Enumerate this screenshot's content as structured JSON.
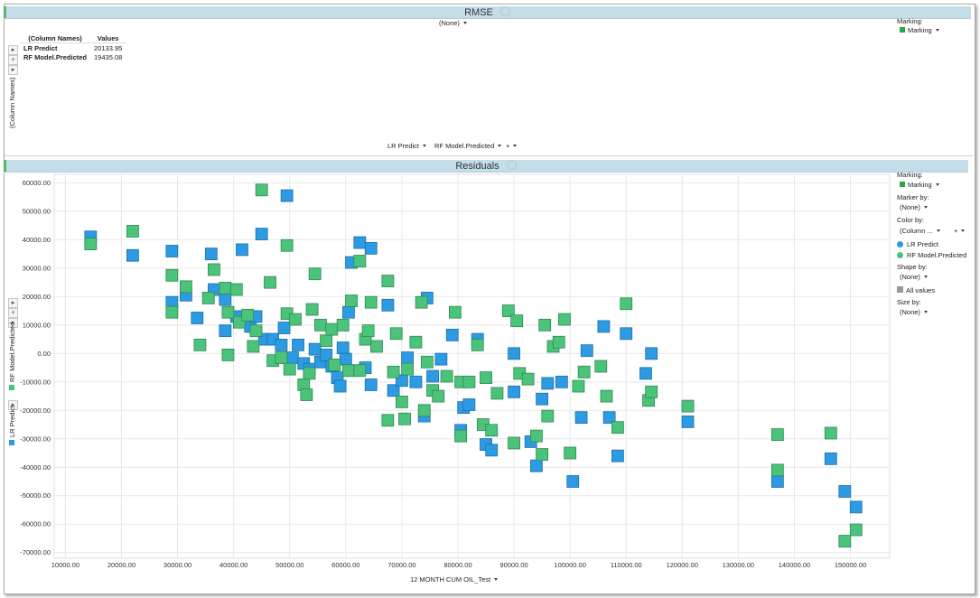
{
  "rmse_panel": {
    "title": "RMSE",
    "column_selector": "(None)",
    "marking_label": "Marking:",
    "marking_value": "Marking",
    "table": {
      "headers": [
        "(Column Names)",
        "Values"
      ],
      "rows": [
        {
          "name": "LR Predict",
          "value": "20133.95"
        },
        {
          "name": "RF Model.Predicted",
          "value": "19435.08"
        }
      ]
    },
    "row_axis_label": "(Column Names)",
    "bottom_selectors": [
      "LR Predict",
      "RF Model.Predicted"
    ]
  },
  "residuals_panel": {
    "title": "Residuals",
    "marking_label": "Marking:",
    "marking_value": "Marking",
    "marker_by_label": "Marker by:",
    "marker_by_value": "(None)",
    "color_by_label": "Color by:",
    "color_by_value": "(Column ...",
    "legend": [
      {
        "name": "LR Predict",
        "color": "#2d9be3"
      },
      {
        "name": "RF Model.Predicted",
        "color": "#4cc37a"
      }
    ],
    "shape_by_label": "Shape by:",
    "shape_by_value": "(None)",
    "shape_all_values": "All values",
    "size_by_label": "Size by:",
    "size_by_value": "(None)",
    "y_axis_series": [
      "LR Predict",
      "RF Model.Predicted"
    ],
    "x_axis_selector": "12 MONTH CUM OIL_Test"
  },
  "colors": {
    "title_bar": "#c4dde8",
    "marking_green": "#28a745",
    "lr_blue": "#2d9be3",
    "rf_green": "#4cc37a"
  },
  "chart_data": {
    "type": "scatter",
    "xlabel": "12 MONTH CUM OIL_Test",
    "ylabel": "",
    "xlim": [
      8000,
      157000
    ],
    "ylim": [
      -72000,
      63000
    ],
    "x_ticks": [
      "10000.00",
      "20000.00",
      "30000.00",
      "40000.00",
      "50000.00",
      "60000.00",
      "70000.00",
      "80000.00",
      "90000.00",
      "100000.00",
      "110000.00",
      "120000.00",
      "130000.00",
      "140000.00",
      "150000.00"
    ],
    "y_ticks": [
      "60000.00",
      "50000.00",
      "40000.00",
      "30000.00",
      "20000.00",
      "10000.00",
      "0.00",
      "-10000.00",
      "-20000.00",
      "-30000.00",
      "-40000.00",
      "-50000.00",
      "-60000.00",
      "-70000.00"
    ],
    "grid": true,
    "series": [
      {
        "name": "LR Predict",
        "color": "#2d9be3",
        "points": [
          [
            14500,
            41000
          ],
          [
            22000,
            34500
          ],
          [
            29000,
            36000
          ],
          [
            29000,
            18000
          ],
          [
            31500,
            20500
          ],
          [
            33500,
            12500
          ],
          [
            36000,
            35000
          ],
          [
            36500,
            22500
          ],
          [
            38500,
            19000
          ],
          [
            38500,
            8000
          ],
          [
            41500,
            36500
          ],
          [
            40500,
            13000
          ],
          [
            43000,
            9500
          ],
          [
            44000,
            13000
          ],
          [
            45000,
            42000
          ],
          [
            45500,
            5000
          ],
          [
            47000,
            5000
          ],
          [
            48500,
            3000
          ],
          [
            49000,
            9000
          ],
          [
            49500,
            55500
          ],
          [
            50500,
            -1500
          ],
          [
            51500,
            3000
          ],
          [
            52500,
            -3500
          ],
          [
            53500,
            -5500
          ],
          [
            54500,
            1500
          ],
          [
            55500,
            -3000
          ],
          [
            56500,
            -500
          ],
          [
            57500,
            -4500
          ],
          [
            58500,
            -8500
          ],
          [
            59000,
            -11500
          ],
          [
            59500,
            2000
          ],
          [
            60000,
            -2000
          ],
          [
            60500,
            14500
          ],
          [
            61000,
            32000
          ],
          [
            62500,
            39000
          ],
          [
            63500,
            -5000
          ],
          [
            64500,
            37000
          ],
          [
            64500,
            -11000
          ],
          [
            67500,
            17000
          ],
          [
            68500,
            -13000
          ],
          [
            70000,
            -9500
          ],
          [
            71000,
            -1500
          ],
          [
            72500,
            -10000
          ],
          [
            74000,
            -22000
          ],
          [
            74500,
            19500
          ],
          [
            75500,
            -8000
          ],
          [
            77000,
            -2000
          ],
          [
            79000,
            6500
          ],
          [
            80500,
            -27000
          ],
          [
            81000,
            -19000
          ],
          [
            82000,
            -18000
          ],
          [
            83500,
            5000
          ],
          [
            85000,
            -32000
          ],
          [
            86000,
            -34000
          ],
          [
            90000,
            0
          ],
          [
            90000,
            -13500
          ],
          [
            93000,
            -31000
          ],
          [
            94000,
            -39500
          ],
          [
            95000,
            -16000
          ],
          [
            96000,
            -10500
          ],
          [
            98500,
            -10000
          ],
          [
            100500,
            -45000
          ],
          [
            102000,
            -22500
          ],
          [
            103000,
            1000
          ],
          [
            106000,
            9500
          ],
          [
            107000,
            -22500
          ],
          [
            108500,
            -36000
          ],
          [
            110000,
            7000
          ],
          [
            113500,
            -7000
          ],
          [
            114500,
            0
          ],
          [
            121000,
            -24000
          ],
          [
            137000,
            -45000
          ],
          [
            146500,
            -37000
          ],
          [
            149000,
            -48500
          ],
          [
            151000,
            -54000
          ]
        ]
      },
      {
        "name": "RF Model.Predicted",
        "color": "#4cc37a",
        "points": [
          [
            14500,
            38500
          ],
          [
            22000,
            43000
          ],
          [
            29000,
            27500
          ],
          [
            29000,
            14500
          ],
          [
            31500,
            23500
          ],
          [
            34000,
            3000
          ],
          [
            35500,
            19500
          ],
          [
            36500,
            29500
          ],
          [
            38500,
            23000
          ],
          [
            39000,
            14500
          ],
          [
            39000,
            -500
          ],
          [
            40500,
            22500
          ],
          [
            41000,
            11000
          ],
          [
            42500,
            13500
          ],
          [
            43500,
            2500
          ],
          [
            44000,
            8000
          ],
          [
            45000,
            57500
          ],
          [
            46500,
            25000
          ],
          [
            47000,
            -2500
          ],
          [
            48500,
            -1500
          ],
          [
            49500,
            38000
          ],
          [
            49500,
            14000
          ],
          [
            50000,
            -5500
          ],
          [
            51000,
            12000
          ],
          [
            52500,
            -11000
          ],
          [
            53000,
            -14500
          ],
          [
            53500,
            -7000
          ],
          [
            54500,
            28000
          ],
          [
            54000,
            15500
          ],
          [
            55500,
            10000
          ],
          [
            56500,
            4500
          ],
          [
            57500,
            8500
          ],
          [
            58000,
            -4000
          ],
          [
            59500,
            10000
          ],
          [
            60500,
            -6000
          ],
          [
            61000,
            18500
          ],
          [
            62500,
            32500
          ],
          [
            62500,
            -6000
          ],
          [
            63500,
            5000
          ],
          [
            64000,
            8000
          ],
          [
            64500,
            18000
          ],
          [
            65500,
            2500
          ],
          [
            67500,
            25500
          ],
          [
            67500,
            -23500
          ],
          [
            68500,
            -6500
          ],
          [
            69000,
            7000
          ],
          [
            70000,
            -17000
          ],
          [
            70500,
            -23000
          ],
          [
            71000,
            -5500
          ],
          [
            72500,
            4000
          ],
          [
            73500,
            18000
          ],
          [
            74000,
            -20000
          ],
          [
            74500,
            -3000
          ],
          [
            75500,
            -13000
          ],
          [
            76500,
            -15000
          ],
          [
            78000,
            -8000
          ],
          [
            79500,
            14500
          ],
          [
            80500,
            -29000
          ],
          [
            80500,
            -10000
          ],
          [
            82000,
            -10000
          ],
          [
            83500,
            3000
          ],
          [
            84500,
            -25000
          ],
          [
            85000,
            -8500
          ],
          [
            86000,
            -27000
          ],
          [
            87000,
            -14000
          ],
          [
            89000,
            15000
          ],
          [
            90000,
            -31500
          ],
          [
            90500,
            11500
          ],
          [
            91000,
            -7000
          ],
          [
            92500,
            -9000
          ],
          [
            94000,
            -29000
          ],
          [
            95000,
            -35500
          ],
          [
            95500,
            10000
          ],
          [
            96000,
            -22000
          ],
          [
            97000,
            2500
          ],
          [
            98000,
            4000
          ],
          [
            99000,
            12000
          ],
          [
            100000,
            -35000
          ],
          [
            101500,
            -11500
          ],
          [
            102500,
            -6500
          ],
          [
            105500,
            -4500
          ],
          [
            106500,
            -15000
          ],
          [
            108500,
            -26000
          ],
          [
            110000,
            17500
          ],
          [
            114000,
            -16500
          ],
          [
            114500,
            -13500
          ],
          [
            121000,
            -18500
          ],
          [
            137000,
            -28500
          ],
          [
            137000,
            -41000
          ],
          [
            146500,
            -28000
          ],
          [
            149000,
            -66000
          ],
          [
            151000,
            -62000
          ]
        ]
      }
    ]
  }
}
